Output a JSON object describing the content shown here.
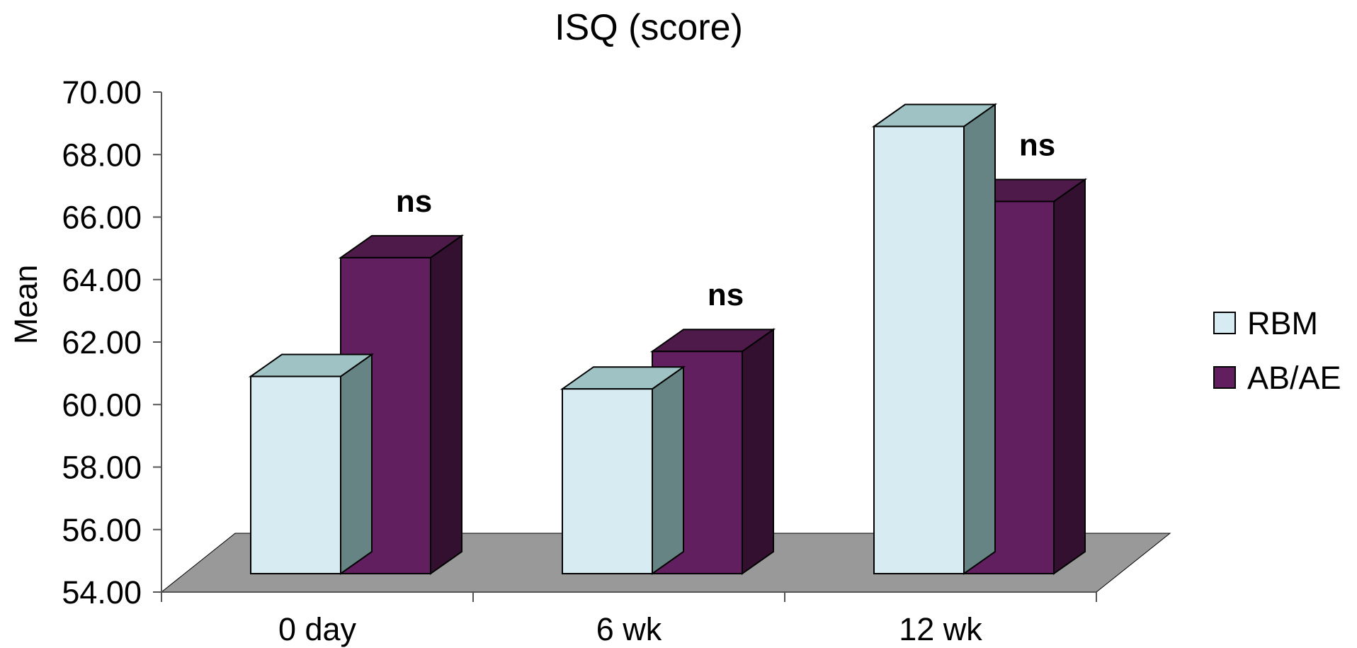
{
  "chart_data": {
    "type": "bar",
    "title": "ISQ (score)",
    "xlabel": "",
    "ylabel": "Mean",
    "ylim": [
      54,
      70
    ],
    "ytick_values": [
      54,
      56,
      58,
      60,
      62,
      64,
      66,
      68,
      70
    ],
    "ytick_labels": [
      "54.00",
      "56.00",
      "58.00",
      "60.00",
      "62.00",
      "64.00",
      "66.00",
      "68.00",
      "70.00"
    ],
    "categories": [
      "0 day",
      "6 wk",
      "12 wk"
    ],
    "series": [
      {
        "name": "RBM",
        "values": [
          60.9,
          60.5,
          68.9
        ],
        "color": "#D6ECF2",
        "top_color": "#9FC3C5",
        "side_color": "#668483"
      },
      {
        "name": "AB/AE",
        "values": [
          64.7,
          61.7,
          66.5
        ],
        "color": "#621F5F",
        "top_color": "#4E1A4A",
        "side_color": "#331030"
      }
    ],
    "annotations": [
      "ns",
      "ns",
      "ns"
    ],
    "floor_color": "#999999",
    "legend_position": "right",
    "grid": false,
    "style": "3d-bar"
  }
}
